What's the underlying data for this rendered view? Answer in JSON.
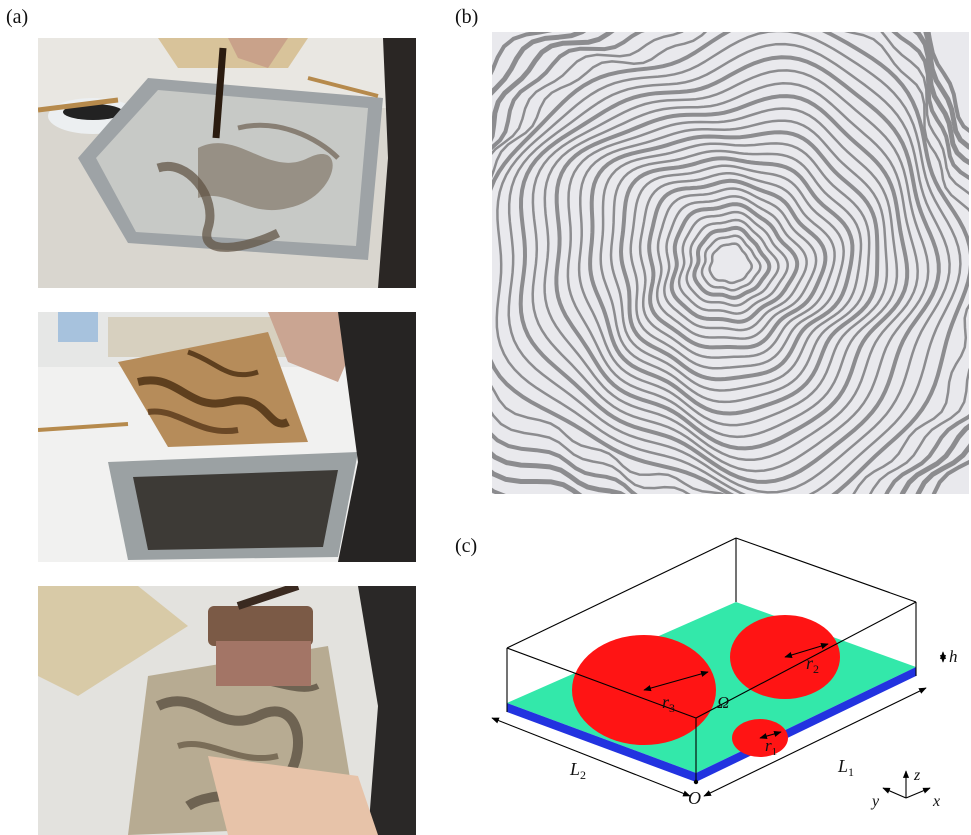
{
  "panels": {
    "a": "(a)",
    "b": "(b)",
    "c": "(c)"
  },
  "images": {
    "a_top": "photo-ink-floating-on-water-tray",
    "a_middle": "photo-lifting-marbled-paper-from-tray",
    "a_bottom": "photo-rolling-marbled-print",
    "b": "photo-concentric-ring-marbling-pattern"
  },
  "diagram": {
    "domain_label": "Ω",
    "radius_labels": [
      "r",
      "r",
      "r"
    ],
    "radius_subscripts": [
      "3",
      "2",
      "1"
    ],
    "height_label": "h",
    "length1": "L",
    "length1_sub": "1",
    "length2": "L",
    "length2_sub": "2",
    "origin_label": "O",
    "axes": {
      "x": "x",
      "y": "y",
      "z": "z"
    },
    "colors": {
      "fluid_layer": "#33e8aa",
      "ink_drops": "#ff1414",
      "substrate_edge": "#2233e0",
      "box_edges": "#000000"
    }
  }
}
